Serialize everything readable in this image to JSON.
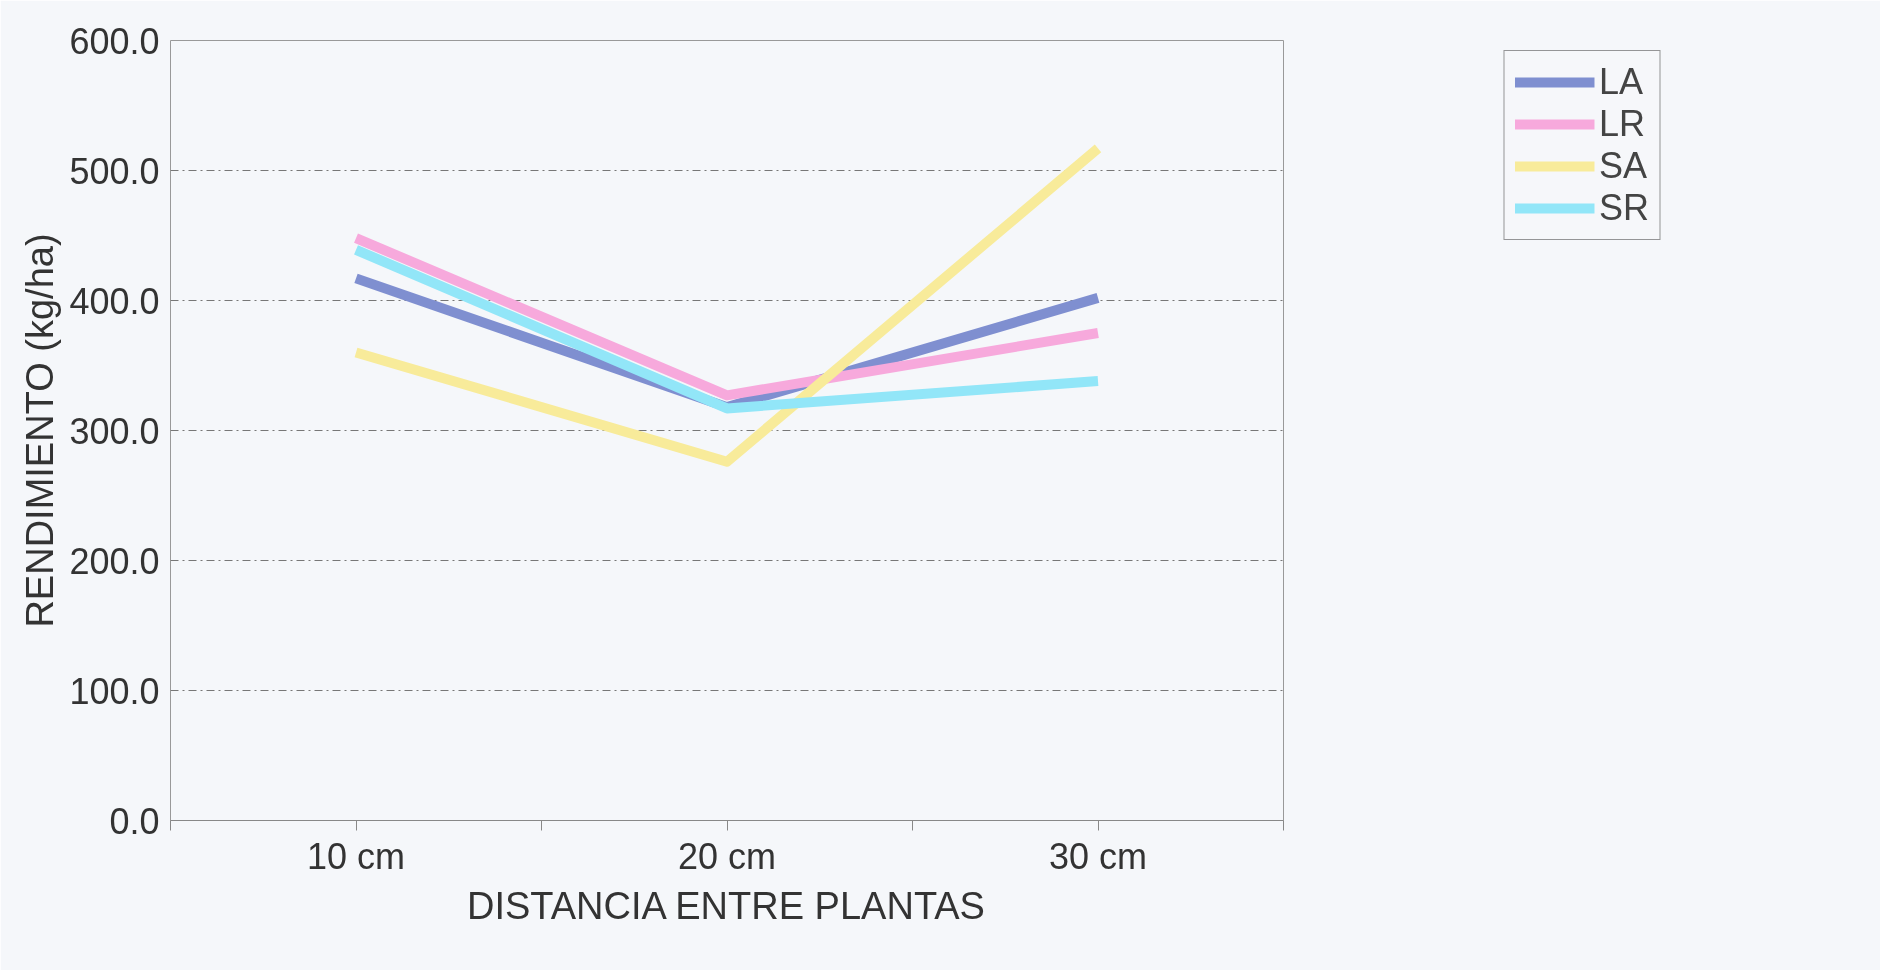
{
  "chart_data": {
    "type": "line",
    "xlabel": "DISTANCIA ENTRE PLANTAS",
    "ylabel": "RENDIMIENTO (kg/ha)",
    "categories": [
      "10 cm",
      "20 cm",
      "30 cm"
    ],
    "series": [
      {
        "name": "LA",
        "color": "#7f8fd0",
        "values": [
          417,
          318,
          402
        ]
      },
      {
        "name": "LR",
        "color": "#f7a9dc",
        "values": [
          448,
          327,
          375
        ]
      },
      {
        "name": "SA",
        "color": "#f8eb9a",
        "values": [
          360,
          276,
          517
        ]
      },
      {
        "name": "SR",
        "color": "#92e6f8",
        "values": [
          439,
          317,
          338
        ]
      }
    ],
    "ylim": [
      0,
      600
    ],
    "yticks": [
      {
        "value": 0,
        "label": "0.0"
      },
      {
        "value": 100,
        "label": "100.0"
      },
      {
        "value": 200,
        "label": "200.0"
      },
      {
        "value": 300,
        "label": "300.0"
      },
      {
        "value": 400,
        "label": "400.0"
      },
      {
        "value": 500,
        "label": "500.0"
      },
      {
        "value": 600,
        "label": "600.0"
      }
    ],
    "grid": "y",
    "legend": "top right",
    "marker": "none",
    "line_style": "solid"
  }
}
